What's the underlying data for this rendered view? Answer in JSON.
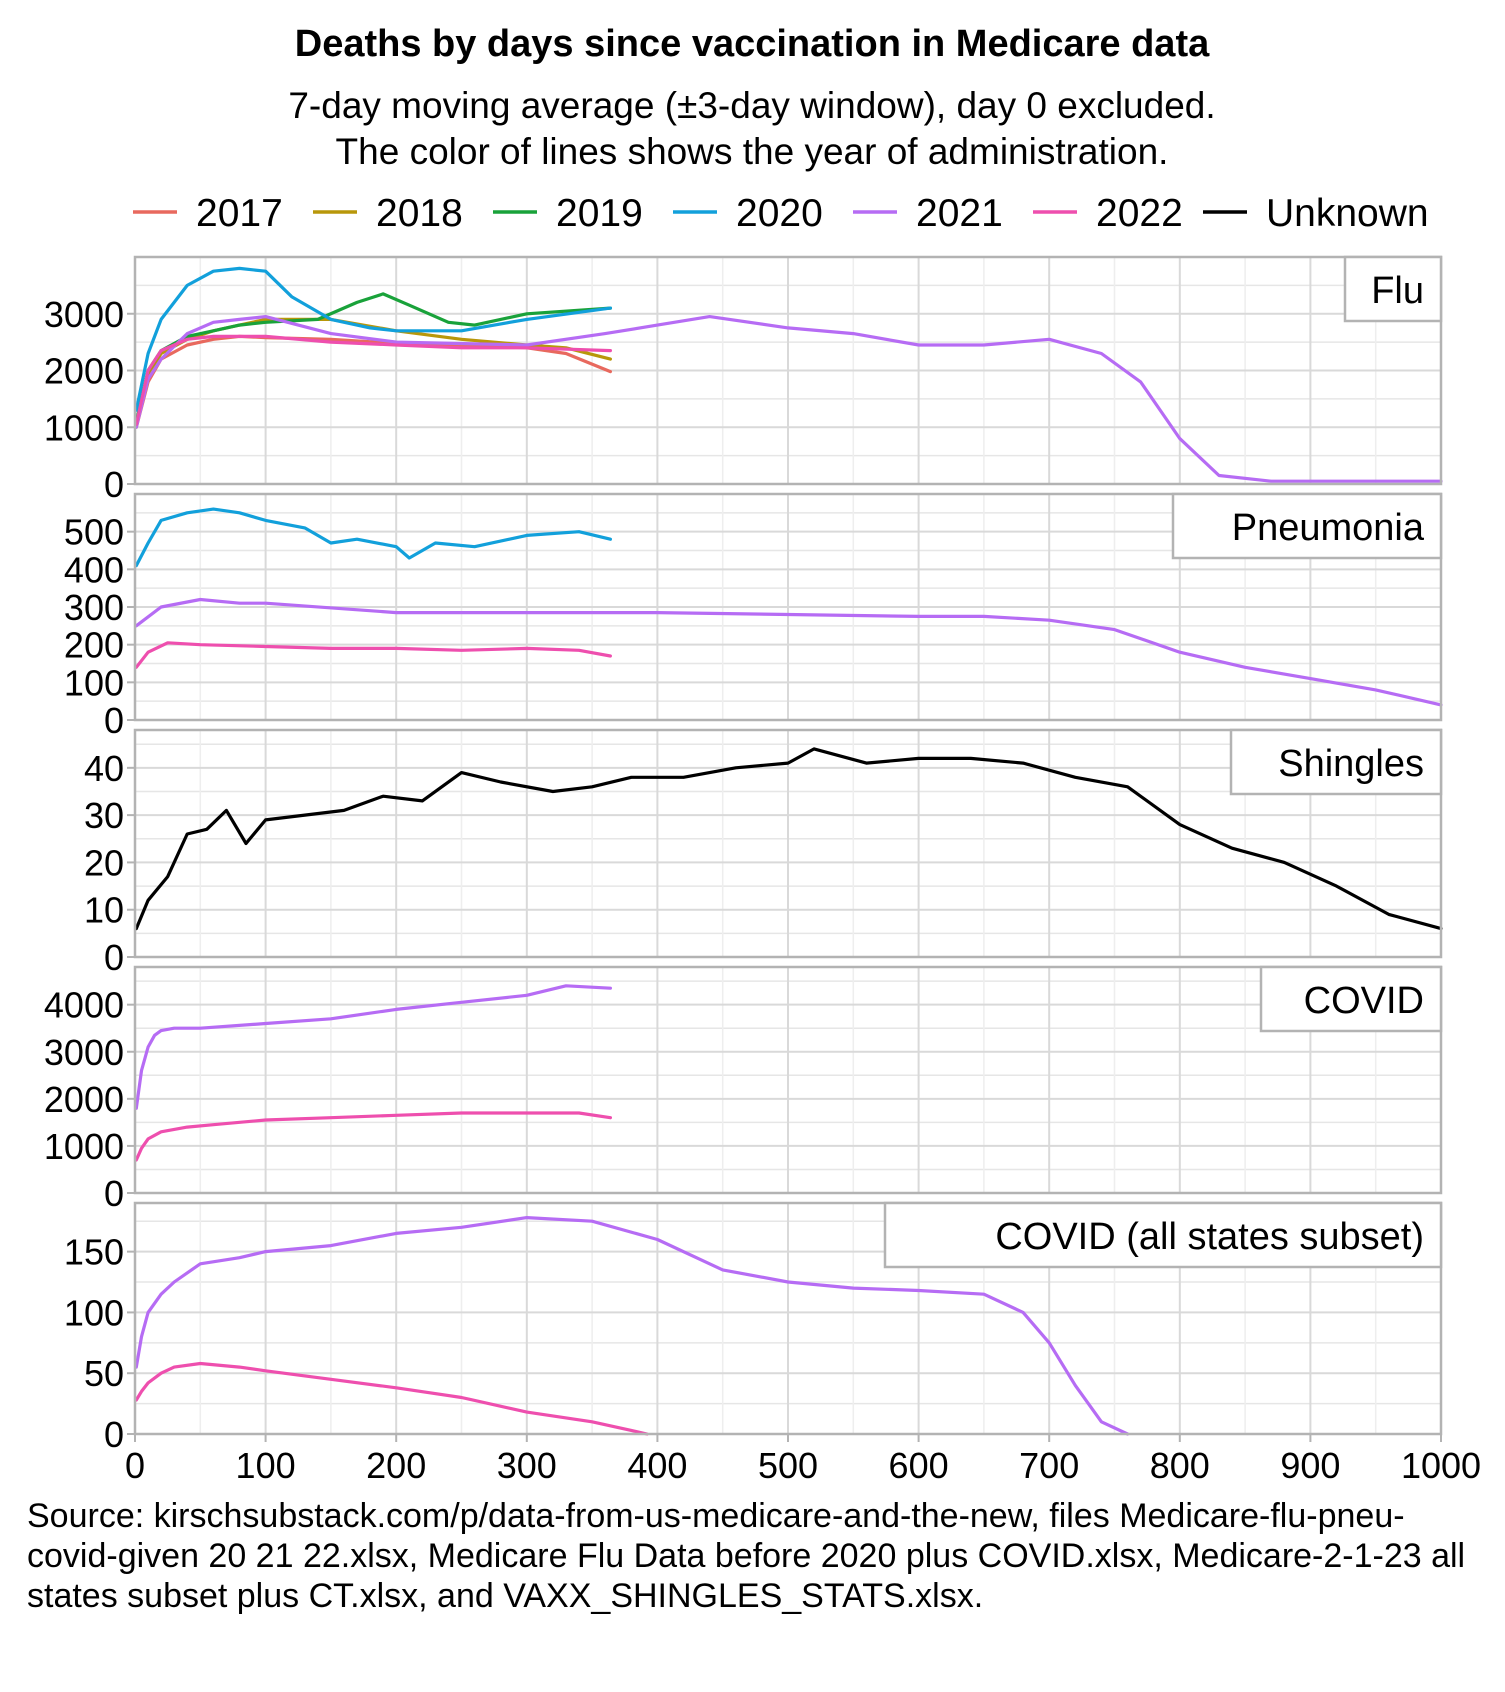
{
  "chart_data": {
    "type": "line",
    "title": "Deaths by days since vaccination in Medicare data",
    "subtitle": [
      "7-day moving average (±3-day window), day 0 excluded.",
      "The color of lines shows the year of administration."
    ],
    "legend_position": "top",
    "legend": [
      {
        "name": "2017",
        "color": "#E8695E"
      },
      {
        "name": "2018",
        "color": "#B8970A"
      },
      {
        "name": "2019",
        "color": "#19A23A"
      },
      {
        "name": "2020",
        "color": "#12A0DB"
      },
      {
        "name": "2021",
        "color": "#B66CF4"
      },
      {
        "name": "2022",
        "color": "#EE4FAE"
      },
      {
        "name": "Unknown",
        "color": "#000000"
      }
    ],
    "x_ticks": [
      "0",
      "100",
      "200",
      "300",
      "400",
      "500",
      "600",
      "700",
      "800",
      "900",
      "1000"
    ],
    "xlim": [
      0,
      1000
    ],
    "grid": true,
    "panels": [
      {
        "label": "Flu",
        "ylim": [
          0,
          4000
        ],
        "y_ticks": [
          0,
          1000,
          2000,
          3000
        ],
        "series": [
          {
            "name": "2017",
            "x": [
              1,
              10,
              20,
              40,
              60,
              80,
              100,
              150,
              200,
              250,
              300,
              330,
              364
            ],
            "y": [
              1000,
              1800,
              2200,
              2450,
              2550,
              2600,
              2580,
              2550,
              2480,
              2450,
              2400,
              2300,
              1980
            ]
          },
          {
            "name": "2018",
            "x": [
              1,
              10,
              20,
              40,
              60,
              80,
              100,
              150,
              200,
              250,
              300,
              330,
              364
            ],
            "y": [
              1050,
              1900,
              2300,
              2550,
              2700,
              2800,
              2900,
              2900,
              2700,
              2550,
              2450,
              2400,
              2200
            ]
          },
          {
            "name": "2019",
            "x": [
              1,
              10,
              20,
              40,
              60,
              80,
              100,
              140,
              170,
              190,
              210,
              240,
              260,
              300,
              364
            ],
            "y": [
              1100,
              2000,
              2350,
              2600,
              2700,
              2800,
              2850,
              2900,
              3200,
              3350,
              3150,
              2850,
              2800,
              3000,
              3100
            ]
          },
          {
            "name": "2020",
            "x": [
              1,
              10,
              20,
              40,
              60,
              80,
              100,
              120,
              150,
              180,
              200,
              250,
              300,
              364
            ],
            "y": [
              1300,
              2300,
              2900,
              3500,
              3750,
              3800,
              3750,
              3300,
              2900,
              2750,
              2700,
              2700,
              2900,
              3100
            ]
          },
          {
            "name": "2021",
            "x": [
              1,
              10,
              20,
              40,
              60,
              80,
              100,
              150,
              200,
              300,
              360,
              400,
              440,
              500,
              550,
              600,
              650,
              700,
              740,
              770,
              800,
              830,
              870,
              1000
            ],
            "y": [
              1000,
              1850,
              2200,
              2650,
              2850,
              2900,
              2950,
              2650,
              2500,
              2450,
              2650,
              2800,
              2950,
              2750,
              2650,
              2450,
              2450,
              2550,
              2300,
              1800,
              800,
              150,
              50,
              50
            ]
          },
          {
            "name": "2022",
            "x": [
              1,
              10,
              20,
              40,
              60,
              100,
              150,
              200,
              250,
              300,
              364
            ],
            "y": [
              1050,
              2000,
              2350,
              2550,
              2600,
              2600,
              2500,
              2450,
              2400,
              2400,
              2350
            ]
          }
        ]
      },
      {
        "label": "Pneumonia",
        "ylim": [
          0,
          600
        ],
        "y_ticks": [
          0,
          100,
          200,
          300,
          400,
          500
        ],
        "series": [
          {
            "name": "2020",
            "x": [
              1,
              10,
              20,
              40,
              60,
              80,
              100,
              130,
              150,
              170,
              200,
              210,
              230,
              260,
              300,
              340,
              364
            ],
            "y": [
              410,
              470,
              530,
              550,
              560,
              550,
              530,
              510,
              470,
              480,
              460,
              430,
              470,
              460,
              490,
              500,
              480
            ]
          },
          {
            "name": "2021",
            "x": [
              1,
              20,
              50,
              80,
              100,
              200,
              300,
              400,
              500,
              600,
              650,
              700,
              750,
              800,
              850,
              900,
              950,
              1000
            ],
            "y": [
              250,
              300,
              320,
              310,
              310,
              285,
              285,
              285,
              280,
              275,
              275,
              265,
              240,
              180,
              140,
              110,
              80,
              40
            ]
          },
          {
            "name": "2022",
            "x": [
              1,
              10,
              25,
              50,
              100,
              150,
              200,
              250,
              300,
              340,
              364
            ],
            "y": [
              140,
              180,
              205,
              200,
              195,
              190,
              190,
              185,
              190,
              185,
              170
            ]
          }
        ]
      },
      {
        "label": "Shingles",
        "ylim": [
          0,
          48
        ],
        "y_ticks": [
          0,
          10,
          20,
          30,
          40
        ],
        "series": [
          {
            "name": "Unknown",
            "x": [
              1,
              10,
              25,
              40,
              55,
              70,
              85,
              100,
              130,
              160,
              190,
              220,
              250,
              280,
              320,
              350,
              380,
              420,
              460,
              500,
              520,
              560,
              600,
              640,
              680,
              720,
              760,
              800,
              840,
              880,
              920,
              960,
              1000
            ],
            "y": [
              6,
              12,
              17,
              26,
              27,
              31,
              24,
              29,
              30,
              31,
              34,
              33,
              39,
              37,
              35,
              36,
              38,
              38,
              40,
              41,
              44,
              41,
              42,
              42,
              41,
              38,
              36,
              28,
              23,
              20,
              15,
              9,
              6
            ]
          }
        ]
      },
      {
        "label": "COVID",
        "ylim": [
          0,
          4800
        ],
        "y_ticks": [
          0,
          1000,
          2000,
          3000,
          4000
        ],
        "series": [
          {
            "name": "2021",
            "x": [
              1,
              5,
              10,
              15,
              20,
              30,
              50,
              100,
              150,
              200,
              250,
              300,
              330,
              364
            ],
            "y": [
              1800,
              2600,
              3100,
              3350,
              3450,
              3500,
              3500,
              3600,
              3700,
              3900,
              4050,
              4200,
              4400,
              4350
            ]
          },
          {
            "name": "2022",
            "x": [
              1,
              5,
              10,
              20,
              40,
              60,
              100,
              150,
              200,
              250,
              300,
              340,
              364
            ],
            "y": [
              700,
              950,
              1150,
              1300,
              1400,
              1450,
              1550,
              1600,
              1650,
              1700,
              1700,
              1700,
              1600
            ]
          }
        ]
      },
      {
        "label": "COVID (all states subset)",
        "ylim": [
          0,
          190
        ],
        "y_ticks": [
          0,
          50,
          100,
          150
        ],
        "series": [
          {
            "name": "2021",
            "x": [
              1,
              5,
              10,
              20,
              30,
              50,
              80,
              100,
              150,
              200,
              250,
              300,
              350,
              400,
              450,
              500,
              550,
              600,
              650,
              680,
              700,
              720,
              740,
              760
            ],
            "y": [
              55,
              80,
              100,
              115,
              125,
              140,
              145,
              150,
              155,
              165,
              170,
              178,
              175,
              160,
              135,
              125,
              120,
              118,
              115,
              100,
              75,
              40,
              10,
              0
            ]
          },
          {
            "name": "2022",
            "x": [
              1,
              5,
              10,
              20,
              30,
              50,
              80,
              100,
              150,
              200,
              250,
              300,
              350,
              380,
              392
            ],
            "y": [
              28,
              35,
              42,
              50,
              55,
              58,
              55,
              52,
              45,
              38,
              30,
              18,
              10,
              3,
              0
            ]
          }
        ]
      }
    ]
  },
  "source": "Source: kirschsubstack.com/p/data-from-us-medicare-and-the-new, files Medicare-flu-pneu-covid-given 20 21 22.xlsx, Medicare Flu Data before 2020 plus COVID.xlsx, Medicare-2-1-23 all states subset plus CT.xlsx, and VAXX_SHINGLES_STATS.xlsx."
}
